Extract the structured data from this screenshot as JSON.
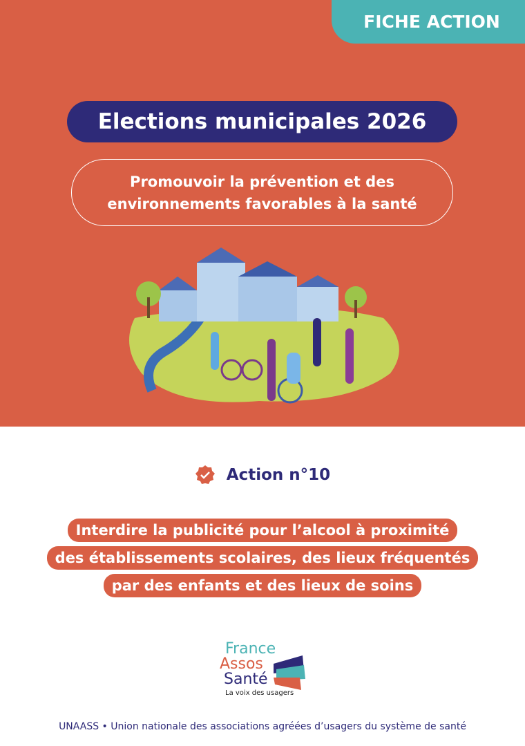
{
  "badge": "FICHE ACTION",
  "title": "Elections municipales 2026",
  "subtitle": [
    "Promouvoir la prévention et des",
    "environnements favorables à la santé"
  ],
  "action": {
    "icon": "check-badge-icon",
    "label": "Action n°10"
  },
  "description": [
    "Interdire la publicité pour l’alcool à proximité",
    "des établissements scolaires, des lieux fréquentés",
    "par des enfants et des lieux de soins"
  ],
  "logo": {
    "line1": "France",
    "line2": "Assos",
    "line3": "Santé",
    "tagline": "La voix des usagers"
  },
  "footer": "UNAASS • Union nationale des associations agréées d’usagers du système de santé",
  "colors": {
    "orange": "#D95F45",
    "navy": "#2E2A78",
    "teal": "#4BB3B4"
  }
}
